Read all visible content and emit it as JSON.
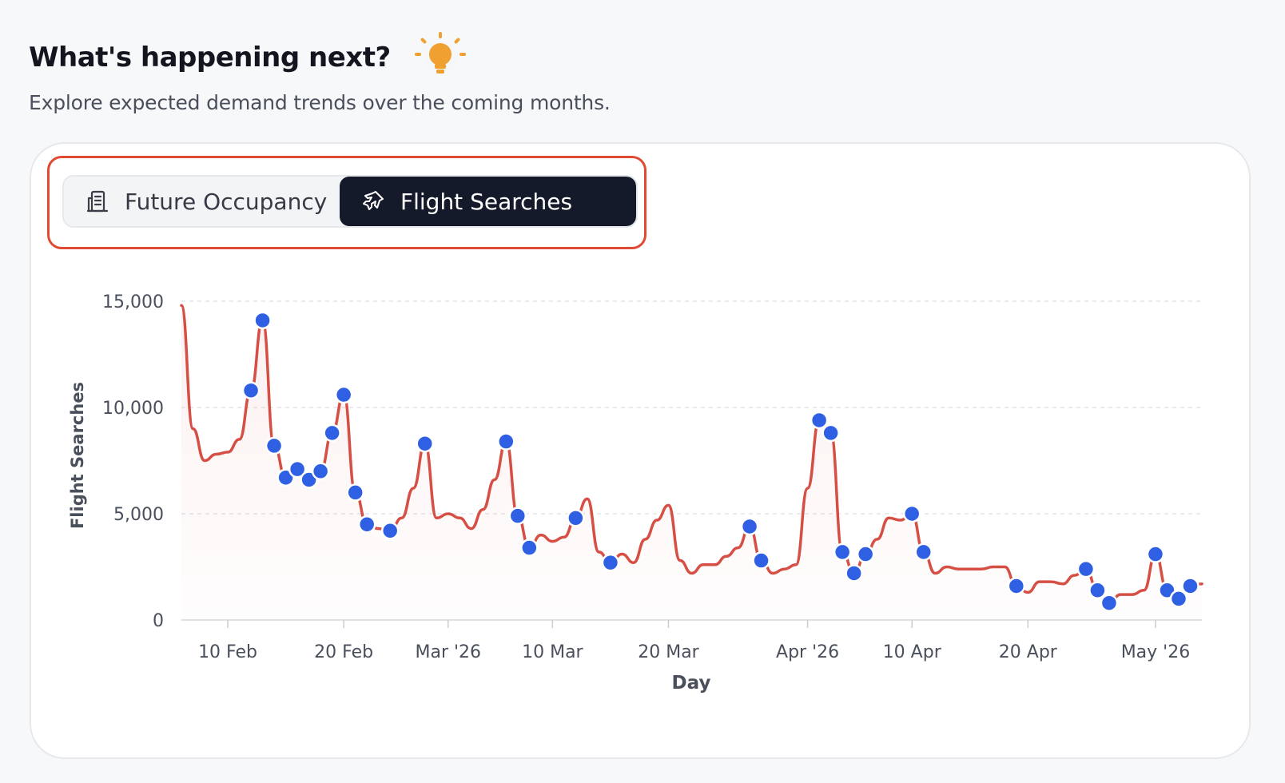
{
  "header": {
    "title": "What's happening next?",
    "subtitle": "Explore expected demand trends over the coming months."
  },
  "toggle": {
    "options": [
      {
        "label": "Future Occupancy",
        "icon": "building-icon",
        "active": false
      },
      {
        "label": "Flight Searches",
        "icon": "plane-icon",
        "active": true
      }
    ]
  },
  "colors": {
    "accent_line": "#d64f45",
    "point": "#2f5fe3",
    "toggle_active_bg": "#151a2b",
    "highlight_border": "#e04a33",
    "bulb": "#f0a030"
  },
  "chart_data": {
    "type": "line",
    "xlabel": "Day",
    "ylabel": "Flight Searches",
    "ylim": [
      0,
      15000
    ],
    "yticks": [
      0,
      5000,
      10000,
      15000
    ],
    "ytick_labels": [
      "0",
      "5,000",
      "10,000",
      "15,000"
    ],
    "xlim": [
      "2026-02-06",
      "2026-05-05"
    ],
    "xticks": [
      {
        "date": "2026-02-10",
        "label": "10 Feb"
      },
      {
        "date": "2026-02-20",
        "label": "20 Feb"
      },
      {
        "date": "2026-03-01",
        "label": "Mar '26"
      },
      {
        "date": "2026-03-10",
        "label": "10 Mar"
      },
      {
        "date": "2026-03-20",
        "label": "20 Mar"
      },
      {
        "date": "2026-04-01",
        "label": "Apr '26"
      },
      {
        "date": "2026-04-10",
        "label": "10 Apr"
      },
      {
        "date": "2026-04-20",
        "label": "20 Apr"
      },
      {
        "date": "2026-05-01",
        "label": "May '26"
      }
    ],
    "grid": true,
    "series": [
      {
        "type": "line",
        "points": [
          [
            "2026-02-06",
            14800
          ],
          [
            "2026-02-07",
            9000
          ],
          [
            "2026-02-08",
            7500
          ],
          [
            "2026-02-09",
            7800
          ],
          [
            "2026-02-10",
            7900
          ],
          [
            "2026-02-11",
            8500
          ],
          [
            "2026-02-12",
            10800
          ],
          [
            "2026-02-13",
            14100
          ],
          [
            "2026-02-14",
            8200
          ],
          [
            "2026-02-15",
            6700
          ],
          [
            "2026-02-16",
            7100
          ],
          [
            "2026-02-17",
            6600
          ],
          [
            "2026-02-18",
            7000
          ],
          [
            "2026-02-19",
            8800
          ],
          [
            "2026-02-20",
            10600
          ],
          [
            "2026-02-21",
            6000
          ],
          [
            "2026-02-22",
            4500
          ],
          [
            "2026-02-23",
            4300
          ],
          [
            "2026-02-24",
            4200
          ],
          [
            "2026-02-25",
            4800
          ],
          [
            "2026-02-26",
            6200
          ],
          [
            "2026-02-27",
            8300
          ],
          [
            "2026-02-28",
            4800
          ],
          [
            "2026-03-01",
            5000
          ],
          [
            "2026-03-02",
            4800
          ],
          [
            "2026-03-03",
            4300
          ],
          [
            "2026-03-04",
            5200
          ],
          [
            "2026-03-05",
            6600
          ],
          [
            "2026-03-06",
            8400
          ],
          [
            "2026-03-07",
            4900
          ],
          [
            "2026-03-08",
            3400
          ],
          [
            "2026-03-09",
            4000
          ],
          [
            "2026-03-10",
            3700
          ],
          [
            "2026-03-11",
            3900
          ],
          [
            "2026-03-12",
            4800
          ],
          [
            "2026-03-13",
            5700
          ],
          [
            "2026-03-14",
            3200
          ],
          [
            "2026-03-15",
            2700
          ],
          [
            "2026-03-16",
            3100
          ],
          [
            "2026-03-17",
            2700
          ],
          [
            "2026-03-18",
            3800
          ],
          [
            "2026-03-19",
            4700
          ],
          [
            "2026-03-20",
            5400
          ],
          [
            "2026-03-21",
            2800
          ],
          [
            "2026-03-22",
            2200
          ],
          [
            "2026-03-23",
            2600
          ],
          [
            "2026-03-24",
            2600
          ],
          [
            "2026-03-25",
            3000
          ],
          [
            "2026-03-26",
            3400
          ],
          [
            "2026-03-27",
            4400
          ],
          [
            "2026-03-28",
            2800
          ],
          [
            "2026-03-29",
            2200
          ],
          [
            "2026-03-30",
            2400
          ],
          [
            "2026-03-31",
            2600
          ],
          [
            "2026-04-01",
            6200
          ],
          [
            "2026-04-02",
            9400
          ],
          [
            "2026-04-03",
            8800
          ],
          [
            "2026-04-04",
            3200
          ],
          [
            "2026-04-05",
            2200
          ],
          [
            "2026-04-06",
            3100
          ],
          [
            "2026-04-07",
            3800
          ],
          [
            "2026-04-08",
            4800
          ],
          [
            "2026-04-09",
            4700
          ],
          [
            "2026-04-10",
            5000
          ],
          [
            "2026-04-11",
            3200
          ],
          [
            "2026-04-12",
            2200
          ],
          [
            "2026-04-13",
            2500
          ],
          [
            "2026-04-14",
            2400
          ],
          [
            "2026-04-15",
            2400
          ],
          [
            "2026-04-16",
            2400
          ],
          [
            "2026-04-17",
            2500
          ],
          [
            "2026-04-18",
            2500
          ],
          [
            "2026-04-19",
            1600
          ],
          [
            "2026-04-20",
            1300
          ],
          [
            "2026-04-21",
            1800
          ],
          [
            "2026-04-22",
            1800
          ],
          [
            "2026-04-23",
            1700
          ],
          [
            "2026-04-24",
            2100
          ],
          [
            "2026-04-25",
            2400
          ],
          [
            "2026-04-26",
            1400
          ],
          [
            "2026-04-27",
            800
          ],
          [
            "2026-04-28",
            1200
          ],
          [
            "2026-04-29",
            1200
          ],
          [
            "2026-04-30",
            1400
          ],
          [
            "2026-05-01",
            3100
          ],
          [
            "2026-05-02",
            1400
          ],
          [
            "2026-05-03",
            1000
          ],
          [
            "2026-05-04",
            1600
          ],
          [
            "2026-05-05",
            1700
          ]
        ],
        "markers": [
          [
            "2026-02-12",
            10800
          ],
          [
            "2026-02-13",
            14100
          ],
          [
            "2026-02-14",
            8200
          ],
          [
            "2026-02-15",
            6700
          ],
          [
            "2026-02-16",
            7100
          ],
          [
            "2026-02-17",
            6600
          ],
          [
            "2026-02-18",
            7000
          ],
          [
            "2026-02-19",
            8800
          ],
          [
            "2026-02-20",
            10600
          ],
          [
            "2026-02-21",
            6000
          ],
          [
            "2026-02-22",
            4500
          ],
          [
            "2026-02-24",
            4200
          ],
          [
            "2026-02-27",
            8300
          ],
          [
            "2026-03-06",
            8400
          ],
          [
            "2026-03-07",
            4900
          ],
          [
            "2026-03-08",
            3400
          ],
          [
            "2026-03-12",
            4800
          ],
          [
            "2026-03-15",
            2700
          ],
          [
            "2026-03-27",
            4400
          ],
          [
            "2026-03-28",
            2800
          ],
          [
            "2026-04-02",
            9400
          ],
          [
            "2026-04-03",
            8800
          ],
          [
            "2026-04-04",
            3200
          ],
          [
            "2026-04-05",
            2200
          ],
          [
            "2026-04-06",
            3100
          ],
          [
            "2026-04-10",
            5000
          ],
          [
            "2026-04-11",
            3200
          ],
          [
            "2026-04-19",
            1600
          ],
          [
            "2026-04-25",
            2400
          ],
          [
            "2026-04-26",
            1400
          ],
          [
            "2026-04-27",
            800
          ],
          [
            "2026-05-01",
            3100
          ],
          [
            "2026-05-02",
            1400
          ],
          [
            "2026-05-03",
            1000
          ],
          [
            "2026-05-04",
            1600
          ]
        ]
      }
    ]
  }
}
